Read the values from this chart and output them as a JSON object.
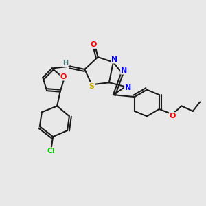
{
  "bg_color": "#e8e8e8",
  "bond_color": "#1a1a1a",
  "atom_colors": {
    "O": "#ff0000",
    "N": "#0000ff",
    "S": "#ccaa00",
    "Cl": "#00cc00",
    "C": "#1a1a1a",
    "H": "#4a7a7a"
  },
  "title": ""
}
